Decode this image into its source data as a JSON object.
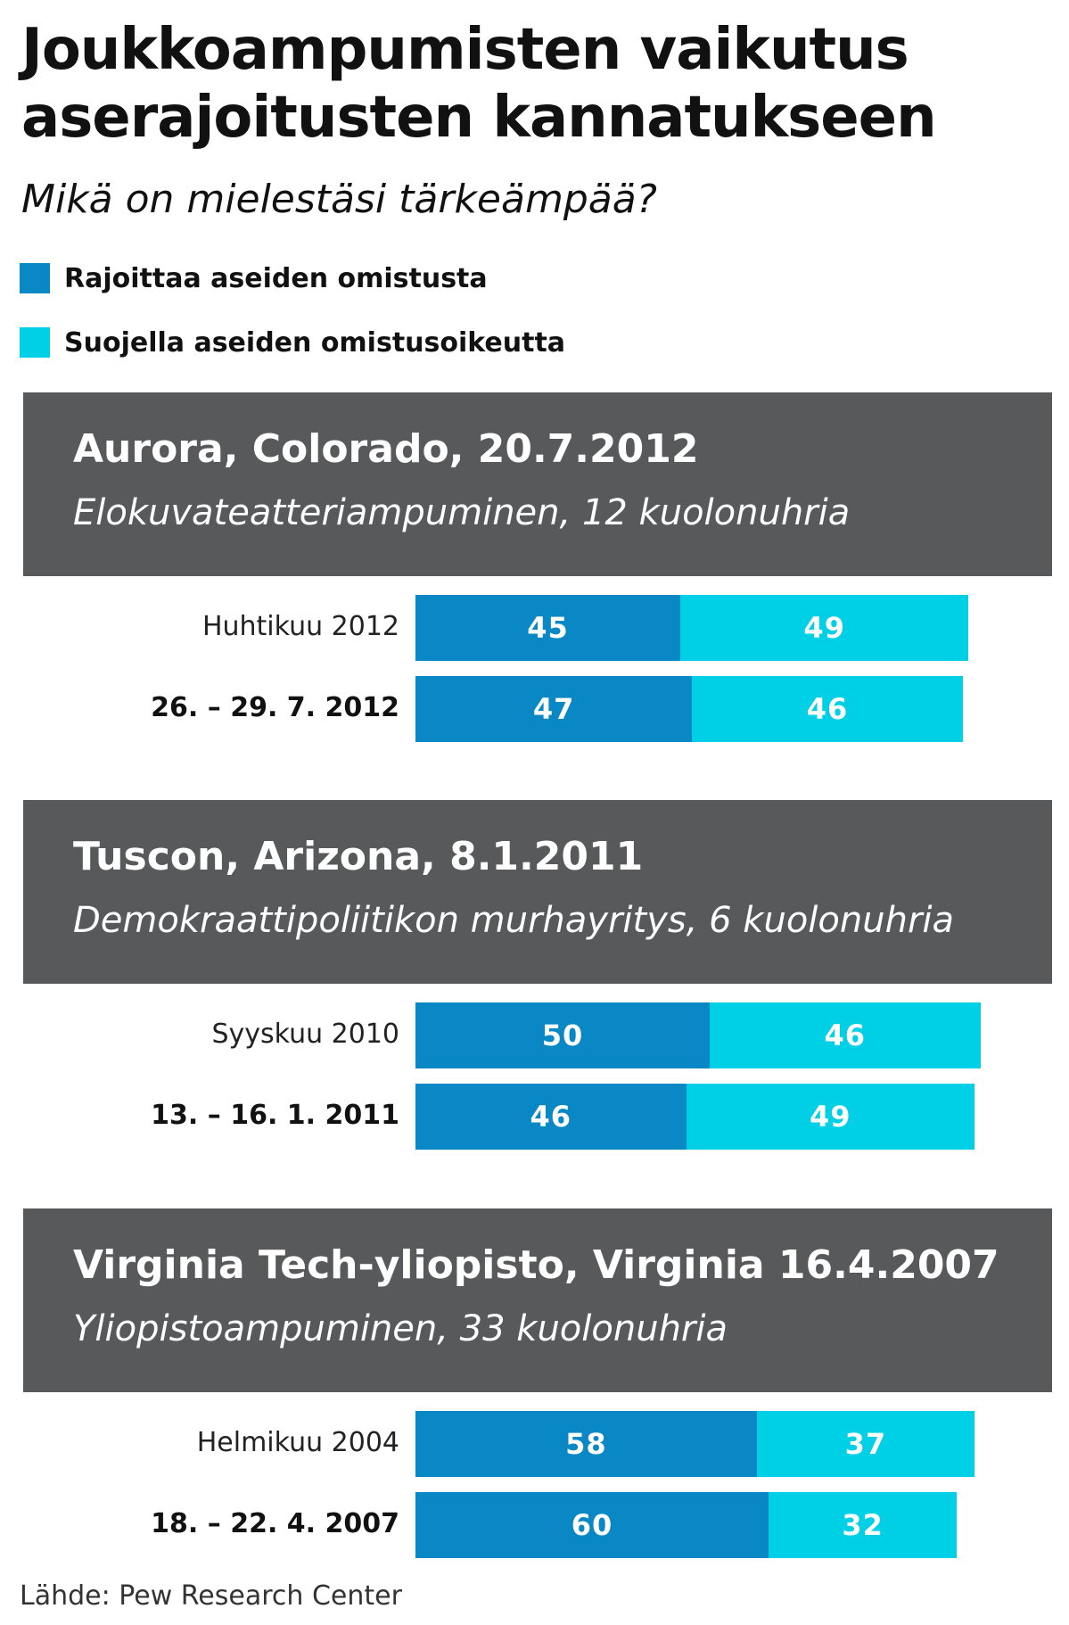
{
  "chart_data": {
    "type": "bar",
    "stacked": true,
    "orientation": "horizontal",
    "title": "Joukkoampumisten vaikutus aserajoitusten kannatukseen",
    "subtitle": "Mikä on mielestäsi tärkeämpää?",
    "legend": [
      {
        "label": "Rajoittaa aseiden omistusta",
        "color": "#0a88c6"
      },
      {
        "label": "Suojella aseiden omistusoikeutta",
        "color": "#00d0e6"
      }
    ],
    "groups": [
      {
        "title": "Aurora, Colorado, 20.7.2012",
        "description": "Elokuvateatteriampuminen, 12 kuolonuhria",
        "rows": [
          {
            "label": "Huhtikuu 2012",
            "bold": false,
            "values": [
              45,
              49
            ]
          },
          {
            "label": "26. – 29. 7. 2012",
            "bold": true,
            "values": [
              47,
              46
            ]
          }
        ]
      },
      {
        "title": "Tuscon, Arizona, 8.1.2011",
        "description": "Demokraattipoliitikon murhayritys, 6 kuolonuhria",
        "rows": [
          {
            "label": "Syyskuu 2010",
            "bold": false,
            "values": [
              50,
              46
            ]
          },
          {
            "label": "13. – 16. 1. 2011",
            "bold": true,
            "values": [
              46,
              49
            ]
          }
        ]
      },
      {
        "title": "Virginia Tech-yliopisto, Virginia 16.4.2007",
        "description": "Yliopistoampuminen, 33 kuolonuhria",
        "rows": [
          {
            "label": "Helmikuu 2004",
            "bold": false,
            "values": [
              58,
              37
            ]
          },
          {
            "label": "18. – 22. 4. 2007",
            "bold": true,
            "values": [
              60,
              32
            ]
          }
        ]
      }
    ],
    "source": "Lähde: Pew Research Center"
  }
}
